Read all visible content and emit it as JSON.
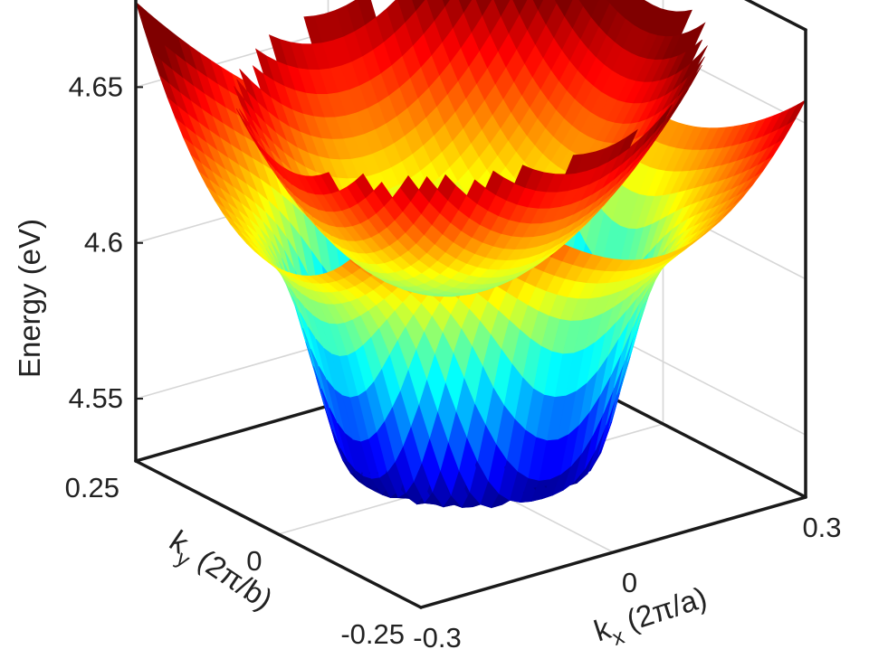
{
  "chart_data": {
    "type": "surface3d",
    "title": "",
    "xlabel": "k_x (2π/a)",
    "ylabel": "k_y (2π/b)",
    "zlabel": "Energy (eV)",
    "xlabel_parts": {
      "k": "k",
      "sub": "x",
      "rest": " (2π/a)"
    },
    "ylabel_parts": {
      "k": "k",
      "sub": "y",
      "rest": " (2π/b)"
    },
    "xlim": [
      -0.3,
      0.3
    ],
    "ylim": [
      -0.25,
      0.25
    ],
    "zlim": [
      4.53,
      4.68
    ],
    "x_ticks": [
      "-0.3",
      "0",
      "0.3"
    ],
    "y_ticks": [
      "0.25",
      "0",
      "-0.25"
    ],
    "z_ticks": [
      "4.55",
      "4.6",
      "4.65"
    ],
    "colormap": "jet",
    "grid": true,
    "series": [
      {
        "description": "lower band (Mexican-hat shaped, central peak at Γ)",
        "center_energy": 4.6,
        "min_energy": 4.535,
        "edge_energy_max": 4.67
      },
      {
        "description": "upper band (inverted, minimum near Γ)",
        "min_energy": 4.595,
        "edge_energy_max": 4.69
      }
    ]
  }
}
